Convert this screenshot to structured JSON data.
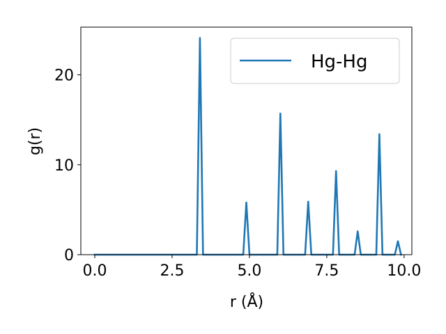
{
  "chart_data": {
    "type": "line",
    "title": "",
    "xlabel": "r (Å)",
    "ylabel": "g(r)",
    "xlim": [
      -0.45,
      10.25
    ],
    "ylim": [
      0,
      25.3
    ],
    "xticks": [
      0.0,
      2.5,
      5.0,
      7.5,
      10.0
    ],
    "xtick_labels": [
      "0.0",
      "2.5",
      "5.0",
      "7.5",
      "10.0"
    ],
    "yticks": [
      0,
      10,
      20
    ],
    "ytick_labels": [
      "0",
      "10",
      "20"
    ],
    "grid": false,
    "legend_position": "top-right",
    "series": [
      {
        "name": "Hg-Hg",
        "color": "#1f77b4",
        "x": [
          0.0,
          3.3,
          3.4,
          3.5,
          4.8,
          4.9,
          5.0,
          5.9,
          6.0,
          6.1,
          6.8,
          6.9,
          7.0,
          7.7,
          7.8,
          7.9,
          8.4,
          8.5,
          8.6,
          9.1,
          9.2,
          9.3,
          9.7,
          9.8,
          9.9
        ],
        "y": [
          0,
          0,
          24.1,
          0,
          0,
          5.8,
          0,
          0,
          15.7,
          0,
          0,
          5.9,
          0,
          0,
          9.3,
          0,
          0,
          2.6,
          0,
          0,
          13.4,
          0,
          0,
          1.5,
          0
        ]
      }
    ]
  }
}
